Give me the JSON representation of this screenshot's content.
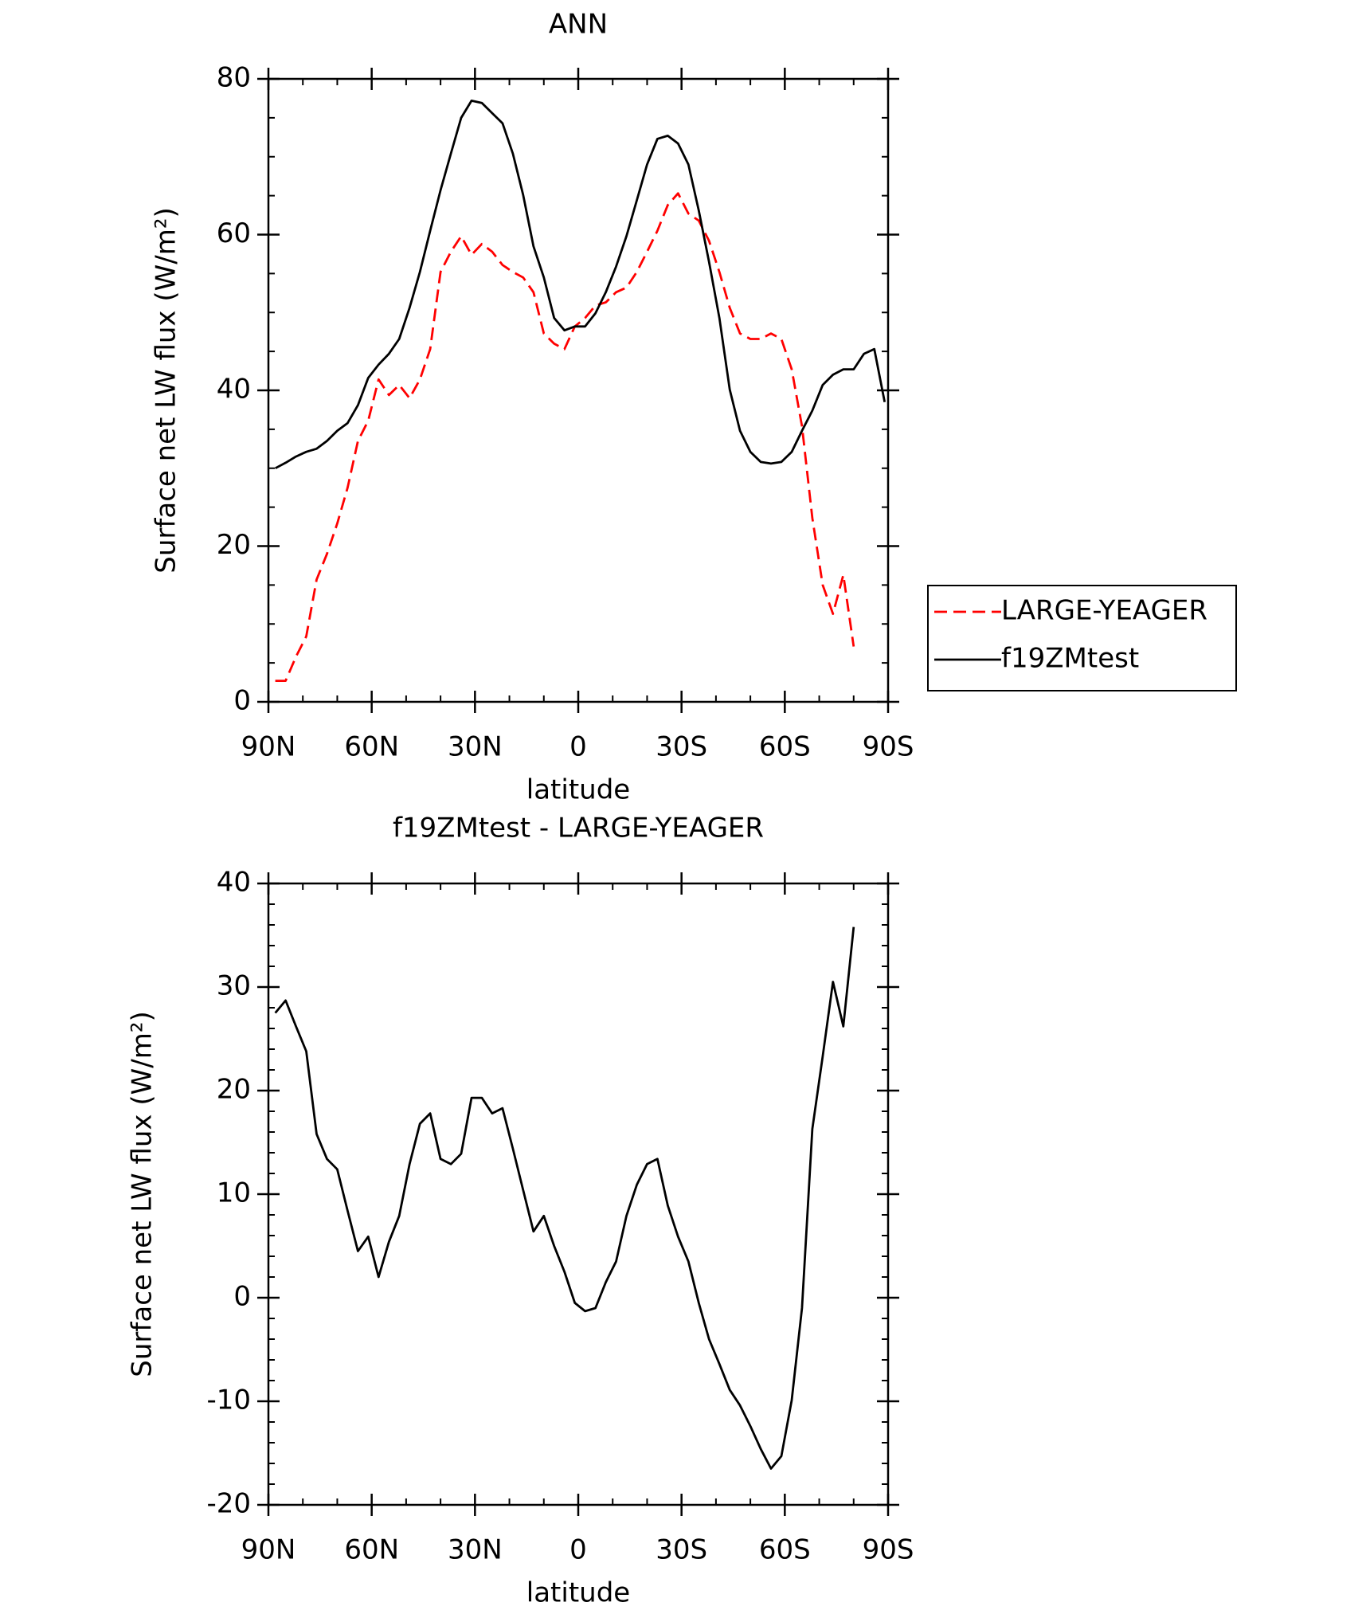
{
  "chart_data": [
    {
      "type": "line",
      "title": "ANN",
      "xlabel": "latitude",
      "ylabel": "Surface net LW flux (W/m²)",
      "x": [
        88,
        85,
        82,
        79,
        76,
        73,
        70,
        67,
        64,
        61,
        58,
        55,
        52,
        49,
        46,
        43,
        40,
        37,
        34,
        31,
        28,
        25,
        22,
        19,
        16,
        13,
        10,
        7,
        4,
        1,
        -2,
        -5,
        -8,
        -11,
        -14,
        -17,
        -20,
        -23,
        -26,
        -29,
        -32,
        -35,
        -38,
        -41,
        -44,
        -47,
        -50,
        -53,
        -56,
        -59,
        -62,
        -65,
        -68,
        -71,
        -74,
        -77,
        -80,
        -83,
        -86,
        -89
      ],
      "series": [
        {
          "name": "LARGE-YEAGER",
          "color": "#ff0000",
          "style": "dashed",
          "values": [
            2.7,
            2.7,
            5.8,
            8.4,
            15.7,
            19.0,
            22.9,
            27.5,
            33.5,
            36.1,
            41.4,
            39.4,
            40.7,
            39.0,
            41.4,
            45.3,
            55.2,
            57.8,
            59.8,
            57.4,
            58.8,
            57.8,
            56.1,
            55.2,
            54.5,
            52.6,
            47.3,
            46.0,
            45.3,
            48.2,
            49.3,
            50.9,
            51.3,
            52.6,
            53.2,
            55.2,
            57.8,
            60.5,
            63.8,
            65.3,
            62.7,
            61.8,
            59.2,
            55.2,
            50.6,
            47.3,
            46.6,
            46.6,
            47.3,
            46.6,
            42.7,
            35.4,
            23.6,
            15.0,
            11.3,
            16.3,
            7.1,
            null,
            null,
            null
          ]
        },
        {
          "name": "f19ZMtest",
          "color": "#000000",
          "style": "solid",
          "values": [
            30.0,
            30.7,
            31.5,
            32.1,
            32.5,
            33.5,
            34.8,
            35.8,
            38.1,
            41.6,
            43.3,
            44.7,
            46.6,
            50.6,
            55.2,
            60.5,
            65.7,
            70.4,
            75.0,
            77.2,
            76.9,
            75.6,
            74.3,
            70.4,
            65.1,
            58.5,
            54.5,
            49.3,
            47.7,
            48.2,
            48.2,
            49.9,
            52.6,
            55.9,
            59.8,
            64.4,
            69.0,
            72.3,
            72.7,
            71.7,
            69.0,
            63.1,
            56.5,
            49.3,
            40.1,
            34.8,
            32.1,
            30.8,
            30.6,
            30.8,
            32.1,
            34.8,
            37.4,
            40.7,
            42.0,
            42.7,
            42.7,
            44.7,
            45.3,
            38.5
          ]
        }
      ],
      "xlim": [
        90,
        -90
      ],
      "xticks": [
        {
          "value": 90,
          "label": "90N"
        },
        {
          "value": 60,
          "label": "60N"
        },
        {
          "value": 30,
          "label": "30N"
        },
        0,
        {
          "value": -30,
          "label": "30S"
        },
        {
          "value": -60,
          "label": "60S"
        },
        {
          "value": -90,
          "label": "90S"
        }
      ],
      "ylim": [
        0,
        80
      ],
      "yticks": [
        0,
        20,
        40,
        60,
        80
      ],
      "legend": "right"
    },
    {
      "type": "line",
      "title": "f19ZMtest - LARGE-YEAGER",
      "xlabel": "latitude",
      "ylabel": "Surface net LW flux (W/m²)",
      "x": [
        88,
        85,
        82,
        79,
        76,
        73,
        70,
        67,
        64,
        61,
        58,
        55,
        52,
        49,
        46,
        43,
        40,
        37,
        34,
        31,
        28,
        25,
        22,
        19,
        16,
        13,
        10,
        7,
        4,
        1,
        -2,
        -5,
        -8,
        -11,
        -14,
        -17,
        -20,
        -23,
        -26,
        -29,
        -32,
        -35,
        -38,
        -41,
        -44,
        -47,
        -50,
        -53,
        -56,
        -59,
        -62,
        -65,
        -68,
        -71,
        -74,
        -77,
        -80
      ],
      "color": "#000000",
      "values": [
        27.5,
        28.7,
        26.2,
        23.8,
        15.8,
        13.4,
        12.4,
        8.4,
        4.5,
        5.9,
        2.0,
        5.4,
        7.9,
        12.9,
        16.8,
        17.8,
        13.4,
        12.9,
        13.9,
        19.3,
        19.3,
        17.8,
        18.3,
        14.4,
        10.4,
        6.4,
        7.9,
        5.0,
        2.5,
        -0.5,
        -1.3,
        -1.0,
        1.5,
        3.5,
        7.9,
        10.9,
        12.9,
        13.4,
        8.9,
        5.9,
        3.5,
        -0.5,
        -4.0,
        -6.4,
        -8.9,
        -10.4,
        -12.4,
        -14.6,
        -16.5,
        -15.3,
        -9.9,
        -1.0,
        16.3,
        23.3,
        30.5,
        26.2,
        35.8
      ],
      "xlim": [
        90,
        -90
      ],
      "xticks": [
        {
          "value": 90,
          "label": "90N"
        },
        {
          "value": 60,
          "label": "60N"
        },
        {
          "value": 30,
          "label": "30N"
        },
        0,
        {
          "value": -30,
          "label": "30S"
        },
        {
          "value": -60,
          "label": "60S"
        },
        {
          "value": -90,
          "label": "90S"
        }
      ],
      "ylim": [
        -20,
        40
      ],
      "yticks": [
        -20,
        -10,
        0,
        10,
        20,
        30,
        40
      ]
    }
  ]
}
